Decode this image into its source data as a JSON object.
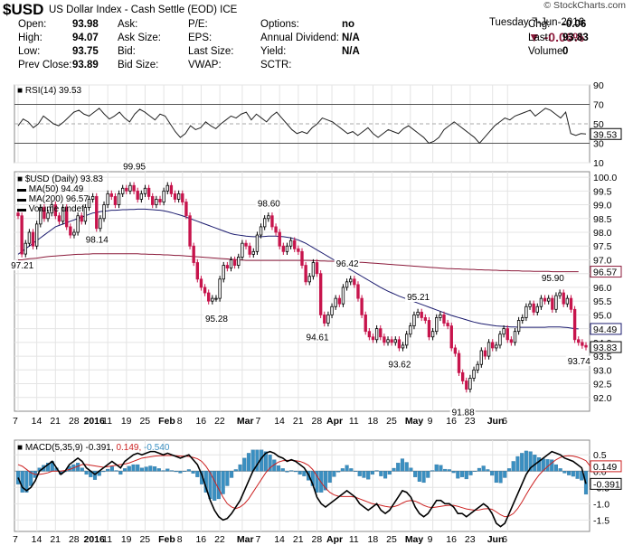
{
  "header": {
    "symbol": "$USD",
    "subtitle": "US Dollar Index - Cash Settle (EOD)  ICE",
    "brand": "© StockCharts.com",
    "date": "Tuesday  7-Jun-2016",
    "pct_change": "▼ -0.06%",
    "rows": [
      [
        {
          "k": "Open:",
          "v": "93.98"
        },
        {
          "k": "Ask:",
          "v": ""
        },
        {
          "k": "P/E:",
          "v": ""
        },
        {
          "k": "Options:",
          "v": "no"
        },
        {
          "k": "Chg:",
          "v": "-0.06"
        }
      ],
      [
        {
          "k": "High:",
          "v": "94.07"
        },
        {
          "k": "Ask Size:",
          "v": ""
        },
        {
          "k": "EPS:",
          "v": ""
        },
        {
          "k": "Annual Dividend:",
          "v": "N/A"
        },
        {
          "k": "Last:",
          "v": "93.83"
        }
      ],
      [
        {
          "k": "Low:",
          "v": "93.75"
        },
        {
          "k": "Bid:",
          "v": ""
        },
        {
          "k": "Last Size:",
          "v": ""
        },
        {
          "k": "Yield:",
          "v": "N/A"
        },
        {
          "k": "Volume:",
          "v": "0"
        }
      ],
      [
        {
          "k": "Prev Close:",
          "v": "93.89"
        },
        {
          "k": "Bid Size:",
          "v": ""
        },
        {
          "k": "VWAP:",
          "v": ""
        },
        {
          "k": "SCTR:",
          "v": ""
        },
        {
          "k": "",
          "v": ""
        }
      ]
    ]
  },
  "chart_data": [
    {
      "type": "line",
      "panel": "RSI",
      "label": "RSI(14) 39.53",
      "ylim": [
        10,
        90
      ],
      "yticks": [
        10,
        30,
        50,
        70,
        90
      ],
      "last_value_tag": "39.53",
      "values": [
        48,
        55,
        52,
        46,
        50,
        58,
        54,
        50,
        48,
        52,
        57,
        62,
        64,
        60,
        58,
        62,
        66,
        60,
        55,
        58,
        62,
        56,
        52,
        60,
        65,
        62,
        58,
        54,
        60,
        58,
        50,
        42,
        36,
        40,
        48,
        44,
        46,
        52,
        48,
        45,
        50,
        54,
        58,
        56,
        60,
        62,
        54,
        60,
        56,
        52,
        58,
        62,
        56,
        50,
        44,
        40,
        42,
        40,
        46,
        50,
        56,
        54,
        52,
        48,
        44,
        40,
        42,
        38,
        42,
        46,
        40,
        36,
        40,
        44,
        42,
        40,
        45,
        48,
        44,
        40,
        36,
        30,
        32,
        36,
        44,
        48,
        52,
        48,
        44,
        40,
        36,
        30,
        36,
        42,
        48,
        52,
        56,
        54,
        58,
        60,
        62,
        64,
        58,
        62,
        66,
        64,
        60,
        56,
        62,
        40,
        38,
        40,
        39.53
      ]
    },
    {
      "type": "candlestick",
      "panel": "price",
      "legend": [
        "$USD (Daily) 93.83",
        "MA(50) 94.49",
        "MA(200) 96.57",
        "Volume undef"
      ],
      "ylim": [
        91.5,
        100.2
      ],
      "yticks": [
        92.0,
        92.5,
        93.0,
        93.5,
        94.0,
        94.5,
        95.0,
        95.5,
        96.0,
        96.5,
        97.0,
        97.5,
        98.0,
        98.5,
        99.0,
        99.5,
        100.0
      ],
      "price_tags": [
        {
          "value": 94.49,
          "label": "94.49",
          "color": "#1b1b6e"
        },
        {
          "value": 93.83,
          "label": "93.83",
          "color": "#000000"
        },
        {
          "value": 96.57,
          "label": "96.57",
          "color": "#8b1a3a"
        }
      ],
      "annotations": [
        {
          "i": 1,
          "value": 97.21,
          "label": "97.21",
          "pos": "below"
        },
        {
          "i": 21,
          "value": 98.14,
          "label": "98.14",
          "pos": "below"
        },
        {
          "i": 31,
          "value": 99.95,
          "label": "99.95",
          "pos": "above"
        },
        {
          "i": 53,
          "value": 95.28,
          "label": "95.28",
          "pos": "below"
        },
        {
          "i": 67,
          "value": 98.6,
          "label": "98.60",
          "pos": "above"
        },
        {
          "i": 80,
          "value": 94.61,
          "label": "94.61",
          "pos": "below"
        },
        {
          "i": 88,
          "value": 96.42,
          "label": "96.42",
          "pos": "above"
        },
        {
          "i": 102,
          "value": 93.62,
          "label": "93.62",
          "pos": "below"
        },
        {
          "i": 107,
          "value": 95.21,
          "label": "95.21",
          "pos": "above"
        },
        {
          "i": 119,
          "value": 91.88,
          "label": "91.88",
          "pos": "below"
        },
        {
          "i": 143,
          "value": 95.9,
          "label": "95.90",
          "pos": "above"
        },
        {
          "i": 150,
          "value": 93.74,
          "label": "93.74",
          "pos": "below"
        }
      ],
      "close": [
        98.6,
        97.21,
        97.6,
        98.0,
        97.5,
        98.3,
        98.9,
        98.5,
        98.7,
        99.0,
        98.6,
        98.4,
        98.9,
        98.2,
        97.9,
        98.0,
        98.6,
        98.4,
        98.9,
        99.2,
        99.3,
        98.14,
        98.5,
        99.0,
        99.4,
        99.3,
        99.0,
        99.4,
        99.6,
        99.5,
        99.7,
        99.5,
        99.2,
        99.4,
        99.6,
        99.3,
        99.0,
        99.2,
        99.1,
        99.5,
        99.7,
        99.4,
        99.2,
        99.4,
        99.1,
        98.6,
        97.5,
        96.9,
        96.3,
        96.0,
        95.8,
        95.5,
        95.6,
        95.6,
        96.3,
        96.8,
        96.7,
        97.0,
        96.8,
        97.1,
        97.6,
        97.5,
        97.2,
        97.3,
        97.9,
        98.2,
        98.5,
        98.6,
        98.2,
        98.0,
        97.5,
        97.3,
        97.5,
        97.7,
        97.4,
        97.3,
        96.8,
        96.2,
        96.4,
        96.9,
        96.5,
        95.0,
        94.7,
        95.0,
        95.3,
        95.6,
        95.4,
        96.0,
        96.2,
        96.3,
        96.1,
        95.6,
        95.0,
        94.4,
        94.2,
        94.1,
        94.5,
        94.2,
        94.0,
        94.1,
        94.0,
        94.1,
        93.8,
        93.9,
        94.3,
        94.6,
        95.0,
        95.1,
        94.9,
        94.8,
        94.2,
        94.4,
        94.9,
        95.0,
        94.7,
        94.6,
        93.8,
        93.6,
        92.9,
        92.6,
        92.3,
        92.7,
        93.0,
        93.2,
        93.7,
        93.5,
        94.0,
        93.8,
        93.9,
        94.3,
        94.5,
        94.1,
        94.0,
        94.4,
        94.8,
        94.9,
        95.3,
        95.4,
        95.1,
        95.3,
        95.6,
        95.5,
        95.6,
        95.2,
        95.7,
        95.8,
        95.4,
        95.6,
        95.2,
        94.1,
        94.0,
        93.89,
        93.83
      ],
      "ma50": [
        97.2,
        97.3,
        97.4,
        97.5,
        97.6,
        97.7,
        97.8,
        97.9,
        98.0,
        98.1,
        98.2,
        98.25,
        98.3,
        98.35,
        98.4,
        98.45,
        98.5,
        98.55,
        98.6,
        98.65,
        98.7,
        98.72,
        98.75,
        98.77,
        98.78,
        98.8,
        98.8,
        98.81,
        98.82,
        98.82,
        98.83,
        98.83,
        98.84,
        98.84,
        98.84,
        98.83,
        98.82,
        98.81,
        98.8,
        98.78,
        98.75,
        98.72,
        98.68,
        98.64,
        98.6,
        98.55,
        98.5,
        98.45,
        98.4,
        98.35,
        98.3,
        98.25,
        98.2,
        98.15,
        98.1,
        98.05,
        98.0,
        97.95,
        97.92,
        97.9,
        97.88,
        97.86,
        97.85,
        97.84,
        97.84,
        97.84,
        97.85,
        97.86,
        97.86,
        97.86,
        97.85,
        97.84,
        97.82,
        97.8,
        97.76,
        97.72,
        97.66,
        97.6,
        97.52,
        97.44,
        97.36,
        97.28,
        97.2,
        97.12,
        97.04,
        96.96,
        96.88,
        96.8,
        96.72,
        96.64,
        96.56,
        96.48,
        96.4,
        96.32,
        96.24,
        96.16,
        96.08,
        96.0,
        95.93,
        95.86,
        95.8,
        95.74,
        95.68,
        95.63,
        95.58,
        95.53,
        95.48,
        95.43,
        95.38,
        95.33,
        95.28,
        95.23,
        95.18,
        95.13,
        95.08,
        95.03,
        94.98,
        94.94,
        94.9,
        94.86,
        94.82,
        94.78,
        94.74,
        94.71,
        94.68,
        94.66,
        94.64,
        94.62,
        94.6,
        94.59,
        94.58,
        94.57,
        94.56,
        94.56,
        94.55,
        94.55,
        94.55,
        94.55,
        94.55,
        94.55,
        94.55,
        94.55,
        94.56,
        94.56,
        94.56,
        94.56,
        94.55,
        94.54,
        94.52,
        94.5,
        94.49
      ],
      "ma200": [
        97.0,
        97.0,
        97.02,
        97.04,
        97.05,
        97.06,
        97.08,
        97.1,
        97.12,
        97.13,
        97.14,
        97.15,
        97.16,
        97.17,
        97.18,
        97.19,
        97.2,
        97.2,
        97.21,
        97.21,
        97.22,
        97.22,
        97.22,
        97.22,
        97.22,
        97.22,
        97.22,
        97.22,
        97.22,
        97.22,
        97.22,
        97.22,
        97.22,
        97.21,
        97.21,
        97.2,
        97.2,
        97.19,
        97.19,
        97.18,
        97.18,
        97.17,
        97.16,
        97.16,
        97.15,
        97.14,
        97.13,
        97.12,
        97.11,
        97.1,
        97.09,
        97.08,
        97.07,
        97.06,
        97.05,
        97.04,
        97.03,
        97.02,
        97.01,
        97.0,
        96.99,
        96.98,
        96.98,
        96.98,
        96.98,
        96.98,
        96.98,
        96.98,
        96.98,
        96.98,
        96.98,
        96.98,
        96.98,
        96.98,
        96.98,
        96.98,
        96.98,
        96.98,
        96.98,
        96.97,
        96.97,
        96.96,
        96.96,
        96.95,
        96.95,
        96.94,
        96.94,
        96.93,
        96.93,
        96.92,
        96.92,
        96.91,
        96.91,
        96.9,
        96.89,
        96.88,
        96.87,
        96.86,
        96.85,
        96.84,
        96.83,
        96.82,
        96.81,
        96.8,
        96.79,
        96.78,
        96.77,
        96.76,
        96.75,
        96.74,
        96.73,
        96.72,
        96.71,
        96.7,
        96.69,
        96.68,
        96.68,
        96.67,
        96.67,
        96.66,
        96.66,
        96.65,
        96.65,
        96.64,
        96.64,
        96.63,
        96.63,
        96.62,
        96.62,
        96.61,
        96.61,
        96.61,
        96.6,
        96.6,
        96.6,
        96.59,
        96.59,
        96.59,
        96.58,
        96.58,
        96.58,
        96.58,
        96.58,
        96.57,
        96.57,
        96.57,
        96.57,
        96.57,
        96.57,
        96.57,
        96.57
      ]
    },
    {
      "type": "line",
      "panel": "MACD",
      "label_prefix": "MACD(5,35,9)",
      "label_macd": "-0.391",
      "label_signal": "0.149",
      "label_hist": "-0.540",
      "ylim": [
        -1.85,
        0.95
      ],
      "yticks": [
        0.5,
        0.0,
        -0.5,
        -1.0,
        -1.5
      ],
      "tags": [
        {
          "value": 0.149,
          "label": "0.149",
          "color": "#cc2222"
        },
        {
          "value": -0.391,
          "label": "-0.391",
          "color": "#000000"
        }
      ],
      "macd": [
        -0.2,
        -0.5,
        -0.6,
        -0.5,
        -0.3,
        0.0,
        0.1,
        0.2,
        0.3,
        0.1,
        -0.1,
        0.0,
        0.2,
        0.3,
        0.4,
        0.3,
        0.1,
        0.0,
        -0.1,
        0.0,
        0.1,
        0.2,
        0.3,
        0.2,
        0.1,
        0.3,
        0.4,
        0.5,
        0.55,
        0.5,
        0.55,
        0.6,
        0.6,
        0.55,
        0.5,
        0.55,
        0.5,
        0.45,
        0.4,
        0.45,
        0.5,
        0.35,
        0.2,
        -0.1,
        -0.5,
        -0.9,
        -1.2,
        -1.4,
        -1.5,
        -1.45,
        -1.3,
        -1.1,
        -0.9,
        -0.6,
        -0.3,
        0.0,
        0.2,
        0.4,
        0.55,
        0.6,
        0.55,
        0.45,
        0.4,
        0.3,
        0.35,
        0.3,
        0.2,
        0.1,
        -0.1,
        -0.4,
        -0.8,
        -1.0,
        -1.1,
        -1.0,
        -0.9,
        -0.8,
        -0.7,
        -0.6,
        -0.7,
        -0.8,
        -1.0,
        -1.1,
        -1.2,
        -1.1,
        -1.0,
        -1.2,
        -1.3,
        -1.2,
        -1.0,
        -0.8,
        -0.6,
        -0.65,
        -0.8,
        -1.1,
        -1.3,
        -1.4,
        -1.3,
        -1.1,
        -0.9,
        -0.9,
        -1.0,
        -1.0,
        -1.1,
        -1.3,
        -1.3,
        -1.4,
        -1.3,
        -1.2,
        -1.1,
        -1.0,
        -1.1,
        -1.3,
        -1.6,
        -1.7,
        -1.6,
        -1.3,
        -1.0,
        -0.7,
        -0.4,
        -0.1,
        0.1,
        0.2,
        0.3,
        0.4,
        0.5,
        0.6,
        0.55,
        0.5,
        0.4,
        0.35,
        0.3,
        0.2,
        0.1,
        -0.39
      ],
      "signal": [
        0.2,
        0.15,
        0.05,
        -0.05,
        -0.1,
        -0.1,
        -0.08,
        -0.05,
        0.0,
        0.0,
        0.0,
        0.02,
        0.05,
        0.1,
        0.15,
        0.2,
        0.2,
        0.18,
        0.16,
        0.14,
        0.12,
        0.14,
        0.16,
        0.18,
        0.2,
        0.22,
        0.25,
        0.3,
        0.35,
        0.4,
        0.42,
        0.44,
        0.46,
        0.47,
        0.48,
        0.48,
        0.48,
        0.47,
        0.46,
        0.46,
        0.45,
        0.42,
        0.38,
        0.3,
        0.15,
        -0.05,
        -0.3,
        -0.55,
        -0.8,
        -1.0,
        -1.1,
        -1.15,
        -1.1,
        -1.0,
        -0.85,
        -0.65,
        -0.45,
        -0.25,
        -0.05,
        0.1,
        0.2,
        0.28,
        0.32,
        0.33,
        0.33,
        0.32,
        0.3,
        0.25,
        0.18,
        0.05,
        -0.15,
        -0.35,
        -0.52,
        -0.65,
        -0.73,
        -0.77,
        -0.78,
        -0.78,
        -0.78,
        -0.8,
        -0.85,
        -0.9,
        -0.95,
        -1.0,
        -1.02,
        -1.05,
        -1.08,
        -1.1,
        -1.09,
        -1.05,
        -0.98,
        -0.92,
        -0.9,
        -0.92,
        -0.98,
        -1.05,
        -1.1,
        -1.12,
        -1.1,
        -1.08,
        -1.06,
        -1.05,
        -1.05,
        -1.08,
        -1.12,
        -1.16,
        -1.18,
        -1.2,
        -1.19,
        -1.16,
        -1.15,
        -1.17,
        -1.25,
        -1.34,
        -1.4,
        -1.38,
        -1.3,
        -1.15,
        -0.95,
        -0.72,
        -0.5,
        -0.3,
        -0.12,
        0.02,
        0.14,
        0.25,
        0.35,
        0.42,
        0.46,
        0.47,
        0.46,
        0.43,
        0.38,
        0.32,
        0.149
      ]
    }
  ],
  "x_axis": {
    "labels": [
      {
        "i": 0,
        "t": "7"
      },
      {
        "i": 5,
        "t": "14"
      },
      {
        "i": 10,
        "t": "21"
      },
      {
        "i": 15,
        "t": "28"
      },
      {
        "i": 19,
        "t": "2016",
        "bold": true
      },
      {
        "i": 24,
        "t": "11"
      },
      {
        "i": 29,
        "t": "19"
      },
      {
        "i": 34,
        "t": "25"
      },
      {
        "i": 39,
        "t": "Feb",
        "bold": true
      },
      {
        "i": 44,
        "t": "8"
      },
      {
        "i": 49,
        "t": "16"
      },
      {
        "i": 54,
        "t": "22"
      },
      {
        "i": 60,
        "t": "Mar",
        "bold": true
      },
      {
        "i": 65,
        "t": "7"
      },
      {
        "i": 70,
        "t": "14"
      },
      {
        "i": 75,
        "t": "21"
      },
      {
        "i": 80,
        "t": "28"
      },
      {
        "i": 84,
        "t": "Apr",
        "bold": true
      },
      {
        "i": 90,
        "t": "11"
      },
      {
        "i": 95,
        "t": "18"
      },
      {
        "i": 100,
        "t": "25"
      },
      {
        "i": 105,
        "t": "May",
        "bold": true
      },
      {
        "i": 111,
        "t": "9"
      },
      {
        "i": 116,
        "t": "16"
      },
      {
        "i": 121,
        "t": "23"
      },
      {
        "i": 127,
        "t": "Jun",
        "bold": true
      },
      {
        "i": 131,
        "t": "6"
      }
    ]
  },
  "colors": {
    "up": "#ffffff",
    "down": "#c7144c",
    "ma50": "#1b1b6e",
    "ma200": "#8b1a3a",
    "macd": "#000000",
    "signal": "#cc2222",
    "hist": "#3a8fc1",
    "grid": "#e4e4e4",
    "text_red": "#8b1a3a"
  }
}
